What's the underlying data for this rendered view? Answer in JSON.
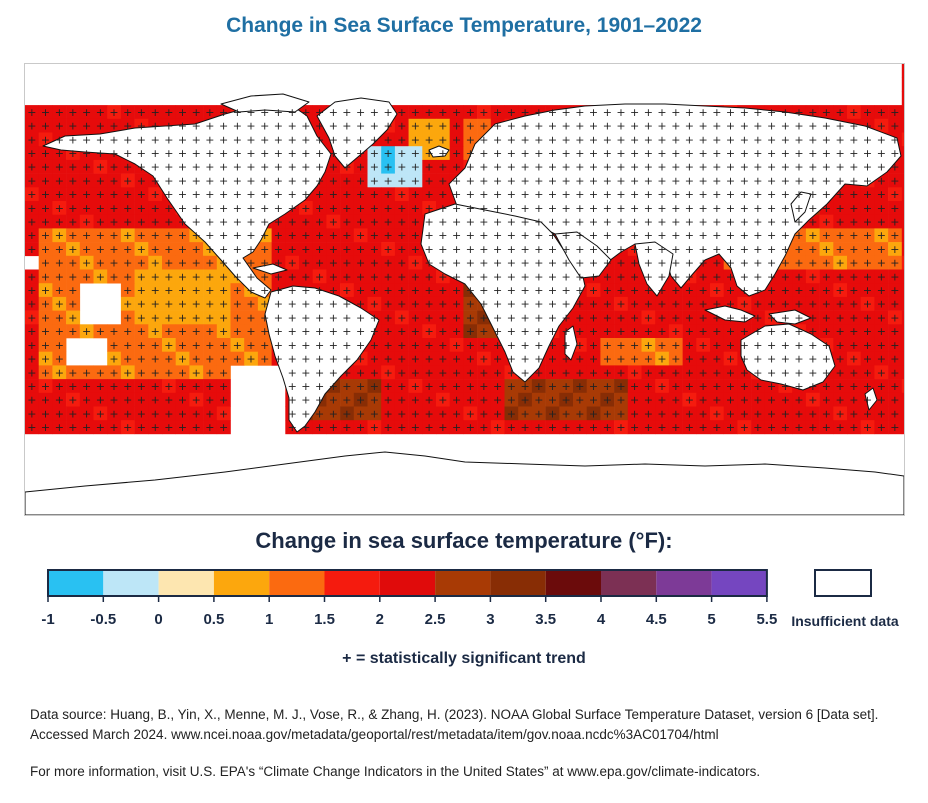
{
  "title": "Change in Sea Surface Temperature, 1901–2022",
  "legend": {
    "title": "Change in sea surface temperature (°F):",
    "ticks": [
      "-1",
      "-0.5",
      "0",
      "0.5",
      "1",
      "1.5",
      "2",
      "2.5",
      "3",
      "3.5",
      "4",
      "4.5",
      "5",
      "5.5"
    ],
    "colors": [
      "#29c1f2",
      "#bde6f7",
      "#fde6b0",
      "#fca70d",
      "#fb6a10",
      "#f51b0e",
      "#e00b0b",
      "#a83a05",
      "#882d05",
      "#6b0b0b",
      "#7c3054",
      "#7d3a97",
      "#7546c0"
    ],
    "insufficient_label": "Insufficient data",
    "significance_note": "+ = statistically significant trend"
  },
  "source_text": "Data source: Huang, B., Yin, X., Menne, M. J., Vose, R., & Zhang, H. (2023). NOAA Global Surface Temperature Dataset, version 6  [Data set]. Accessed March 2024. www.ncei.noaa.gov/metadata/geoportal/rest/metadata/item/gov.noaa.ncdc%3AC01704/html",
  "more_info_text": "For more information, visit U.S. EPA's “Climate Change Indicators in the United States” at www.epa.gov/climate-indicators.",
  "map": {
    "colors": {
      "ocean_default": "#e60b0b",
      "ocean_light": "#fb6a10",
      "ocean_orange": "#fca70d",
      "ocean_brown": "#a83a05",
      "ocean_dark": "#882d05",
      "cool_light": "#bde6f7",
      "cool": "#29c1f2",
      "land": "#ffffff",
      "coast": "#111111"
    }
  }
}
